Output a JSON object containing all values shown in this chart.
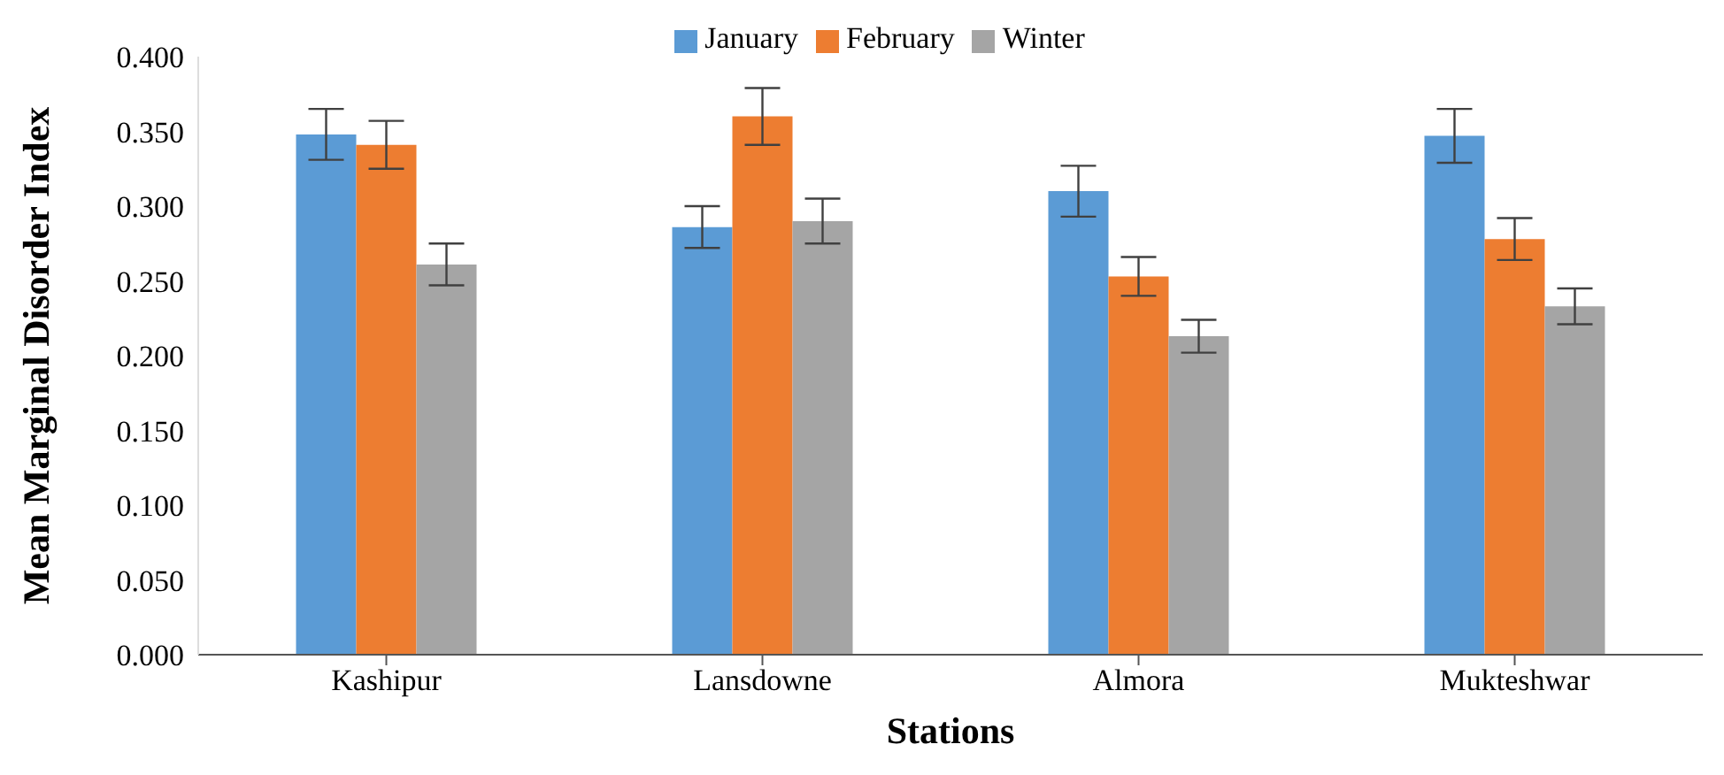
{
  "chart_data": {
    "type": "bar",
    "xlabel": "Stations",
    "ylabel": "Mean Marginal Disorder Index",
    "categories": [
      "Kashipur",
      "Lansdowne",
      "Almora",
      "Mukteshwar"
    ],
    "series": [
      {
        "name": "January",
        "color": "#5b9bd5",
        "values": [
          0.348,
          0.286,
          0.31,
          0.347
        ],
        "errors": [
          0.017,
          0.014,
          0.017,
          0.018
        ]
      },
      {
        "name": "February",
        "color": "#ed7d31",
        "values": [
          0.341,
          0.36,
          0.253,
          0.278
        ],
        "errors": [
          0.016,
          0.019,
          0.013,
          0.014
        ]
      },
      {
        "name": "Winter",
        "color": "#a5a5a5",
        "values": [
          0.261,
          0.29,
          0.213,
          0.233
        ],
        "errors": [
          0.014,
          0.015,
          0.011,
          0.012
        ]
      }
    ],
    "ylim": [
      0,
      0.4
    ],
    "yticks": [
      {
        "value": 0,
        "label": "0.000"
      },
      {
        "value": 0.05,
        "label": "0.050"
      },
      {
        "value": 0.1,
        "label": "0.100"
      },
      {
        "value": 0.15,
        "label": "0.150"
      },
      {
        "value": 0.2,
        "label": "0.200"
      },
      {
        "value": 0.25,
        "label": "0.250"
      },
      {
        "value": 0.3,
        "label": "0.300"
      },
      {
        "value": 0.35,
        "label": "0.350"
      },
      {
        "value": 0.4,
        "label": "0.400"
      }
    ],
    "grid": false,
    "legend": "top"
  }
}
